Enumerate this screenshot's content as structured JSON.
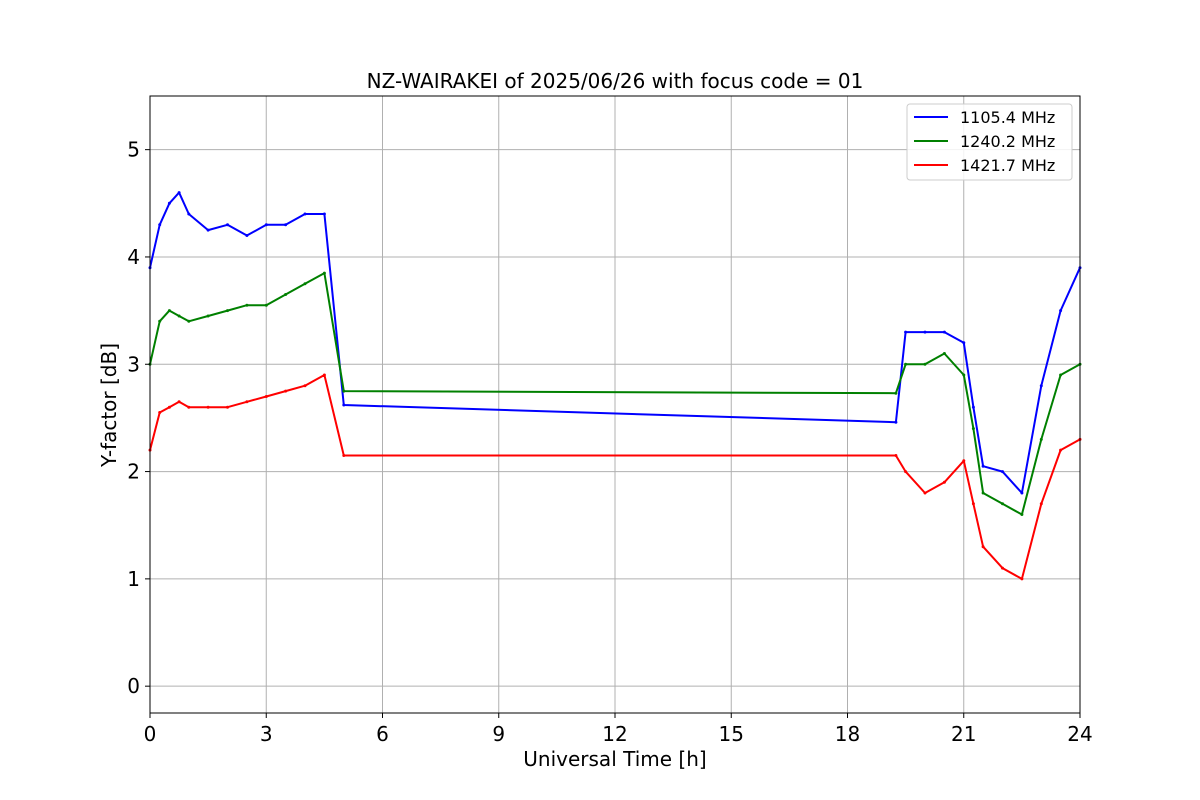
{
  "chart_data": {
    "type": "line",
    "title": "NZ-WAIRAKEI of 2025/06/26 with focus code = 01",
    "xlabel": "Universal Time [h]",
    "ylabel": "Y-factor [dB]",
    "xlim": [
      0,
      24
    ],
    "ylim": [
      -0.25,
      5.5
    ],
    "xticks": [
      0,
      3,
      6,
      9,
      12,
      15,
      18,
      21,
      24
    ],
    "yticks": [
      0,
      1,
      2,
      3,
      4,
      5
    ],
    "grid": true,
    "legend_position": "top-right",
    "series": [
      {
        "name": "1105.4 MHz",
        "color": "#0000ff",
        "x": [
          0.0,
          0.25,
          0.5,
          0.75,
          1.0,
          1.5,
          2.0,
          2.5,
          3.0,
          3.5,
          4.0,
          4.5,
          5.0,
          19.25,
          19.5,
          20.0,
          20.5,
          21.0,
          21.25,
          21.5,
          22.0,
          22.5,
          23.0,
          23.5,
          24.0
        ],
        "y": [
          3.9,
          4.3,
          4.5,
          4.6,
          4.4,
          4.25,
          4.3,
          4.2,
          4.3,
          4.3,
          4.4,
          4.4,
          2.62,
          2.46,
          3.3,
          3.3,
          3.3,
          3.2,
          2.6,
          2.05,
          2.0,
          1.8,
          2.8,
          3.5,
          3.9
        ]
      },
      {
        "name": "1240.2 MHz",
        "color": "#008000",
        "x": [
          0.0,
          0.25,
          0.5,
          0.75,
          1.0,
          1.5,
          2.0,
          2.5,
          3.0,
          3.5,
          4.0,
          4.5,
          5.0,
          19.25,
          19.5,
          20.0,
          20.5,
          21.0,
          21.25,
          21.5,
          22.0,
          22.5,
          23.0,
          23.5,
          24.0
        ],
        "y": [
          3.0,
          3.4,
          3.5,
          3.45,
          3.4,
          3.45,
          3.5,
          3.55,
          3.55,
          3.65,
          3.75,
          3.85,
          2.75,
          2.73,
          3.0,
          3.0,
          3.1,
          2.9,
          2.4,
          1.8,
          1.7,
          1.6,
          2.3,
          2.9,
          3.0
        ]
      },
      {
        "name": "1421.7 MHz",
        "color": "#ff0000",
        "x": [
          0.0,
          0.25,
          0.5,
          0.75,
          1.0,
          1.5,
          2.0,
          2.5,
          3.0,
          3.5,
          4.0,
          4.5,
          5.0,
          19.25,
          19.5,
          20.0,
          20.5,
          21.0,
          21.25,
          21.5,
          22.0,
          22.5,
          23.0,
          23.5,
          24.0
        ],
        "y": [
          2.2,
          2.55,
          2.6,
          2.65,
          2.6,
          2.6,
          2.6,
          2.65,
          2.7,
          2.75,
          2.8,
          2.9,
          2.15,
          2.15,
          2.0,
          1.8,
          1.9,
          2.1,
          1.7,
          1.3,
          1.1,
          1.0,
          1.7,
          2.2,
          2.3
        ]
      }
    ]
  }
}
